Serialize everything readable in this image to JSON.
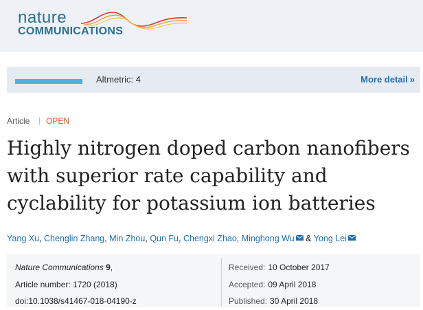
{
  "journal_logo": {
    "line1": "nature",
    "line2": "COMMUNICATIONS",
    "wave_colors": [
      "#e3342f",
      "#f1a340",
      "#f6c64f"
    ]
  },
  "altmetric": {
    "score_text": "Altmetric: 4",
    "more_label": "More detail",
    "more_chevron": "»",
    "stripe_color": "#4fb0dd"
  },
  "article": {
    "type": "Article",
    "separator": "|",
    "access": "OPEN",
    "access_color": "#d85a2a",
    "title_lines": [
      "Highly nitrogen doped carbon nanofibers",
      "with superior rate capability and",
      "cyclability for potassium ion batteries"
    ]
  },
  "authors": [
    {
      "name": "Yang Xu",
      "email": false
    },
    {
      "name": "Chenglin Zhang",
      "email": false
    },
    {
      "name": "Min Zhou",
      "email": false
    },
    {
      "name": "Qun Fu",
      "email": false
    },
    {
      "name": "Chengxi Zhao",
      "email": false
    },
    {
      "name": "Minghong Wu",
      "email": true
    },
    {
      "name": "Yong Lei",
      "email": true
    }
  ],
  "authors_separator": ",",
  "authors_amp": "&",
  "citation": {
    "journal": "Nature Communications",
    "volume": "9",
    "volume_suffix": ",",
    "article_number": "Article number: 1720 (2018)",
    "doi": "doi:10.1038/s41467-018-04190-z"
  },
  "dates": {
    "received_label": "Received:",
    "received": "10 October 2017",
    "accepted_label": "Accepted:",
    "accepted": "09 April 2018",
    "published_label": "Published:",
    "published": "30 April 2018"
  },
  "colors": {
    "link": "#1f6fb0",
    "masthead_bg": "#eef1f6",
    "altbar_bg": "#e6ebf1"
  }
}
